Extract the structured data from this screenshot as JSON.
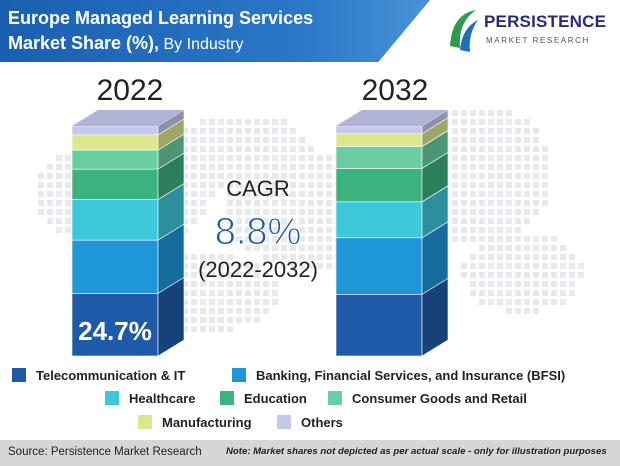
{
  "header": {
    "title_line1": "Europe Managed Learning Services",
    "title_line2_main": "Market Share (%),",
    "title_line2_sub": " By Industry"
  },
  "logo": {
    "name": "PERSISTENCE",
    "subtitle": "MARKET RESEARCH"
  },
  "cagr": {
    "label": "CAGR",
    "value": "8.8%",
    "period": "(2022-2032)"
  },
  "chart_data": {
    "type": "bar",
    "stacked": true,
    "categories": [
      "2022",
      "2032"
    ],
    "series": [
      {
        "name": "Telecommunication & IT",
        "color": "#1f5aa8",
        "values": [
          24.7,
          24.0
        ]
      },
      {
        "name": "Banking, Financial Services, and Insurance (BFSI)",
        "color": "#1e96d8",
        "values": [
          21.0,
          22.0
        ]
      },
      {
        "name": "Healthcare",
        "color": "#3cc8d8",
        "values": [
          16.0,
          14.0
        ]
      },
      {
        "name": "Education",
        "color": "#3cb27e",
        "values": [
          12.0,
          13.0
        ]
      },
      {
        "name": "Consumer Goods and Retail",
        "color": "#69cfa2",
        "values": [
          7.5,
          8.5
        ]
      },
      {
        "name": "Manufacturing",
        "color": "#dbe88e",
        "values": [
          6.0,
          5.0
        ]
      },
      {
        "name": "Others",
        "color": "#c4c8ec",
        "values": [
          3.5,
          3.0
        ]
      }
    ],
    "data_labels": [
      {
        "category": "2022",
        "series": "Telecommunication & IT",
        "text": "24.7%"
      }
    ],
    "ylim": [
      0,
      100
    ],
    "legend_position": "bottom"
  },
  "footer": {
    "source": "Source: Persistence Market Research",
    "note": "Note: Market shares not depicted as per actual scale - only for illustration purposes"
  }
}
